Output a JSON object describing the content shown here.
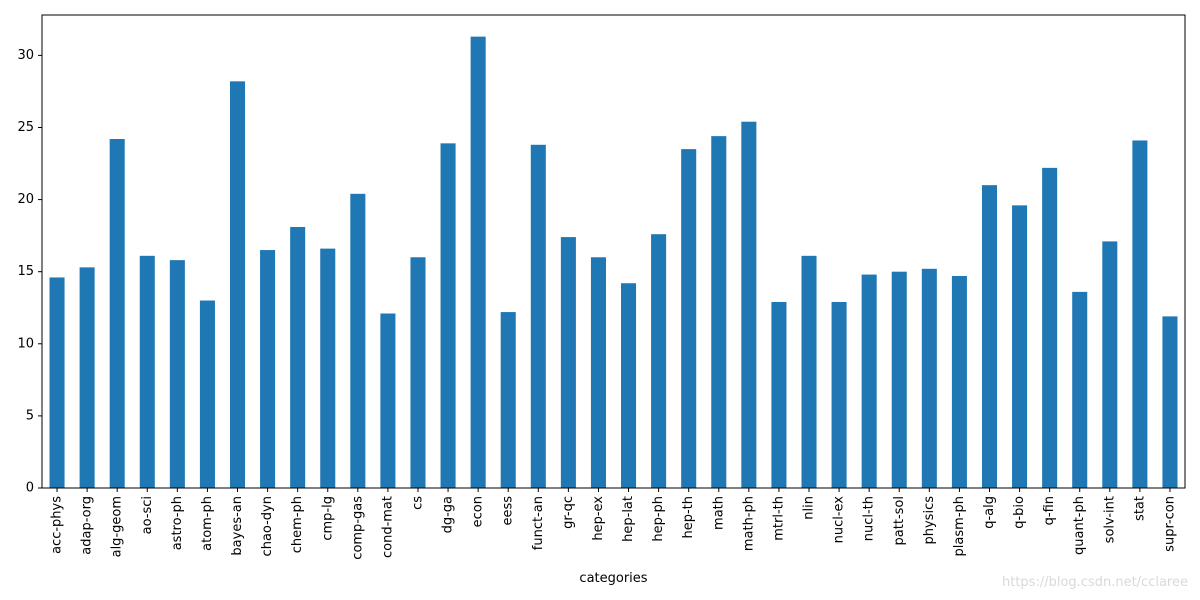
{
  "chart_data": {
    "type": "bar",
    "title": "",
    "xlabel": "categories",
    "ylabel": "",
    "ylim": [
      0,
      32.8
    ],
    "yticks": [
      0,
      5,
      10,
      15,
      20,
      25,
      30
    ],
    "grid": false,
    "legend": "none",
    "bar_color": "#1f77b4",
    "categories": [
      "acc-phys",
      "adap-org",
      "alg-geom",
      "ao-sci",
      "astro-ph",
      "atom-ph",
      "bayes-an",
      "chao-dyn",
      "chem-ph",
      "cmp-lg",
      "comp-gas",
      "cond-mat",
      "cs",
      "dg-ga",
      "econ",
      "eess",
      "funct-an",
      "gr-qc",
      "hep-ex",
      "hep-lat",
      "hep-ph",
      "hep-th",
      "math",
      "math-ph",
      "mtrl-th",
      "nlin",
      "nucl-ex",
      "nucl-th",
      "patt-sol",
      "physics",
      "plasm-ph",
      "q-alg",
      "q-bio",
      "q-fin",
      "quant-ph",
      "solv-int",
      "stat",
      "supr-con"
    ],
    "values": [
      14.6,
      15.3,
      24.2,
      16.1,
      15.8,
      13.0,
      28.2,
      16.5,
      18.1,
      16.6,
      20.4,
      12.1,
      16.0,
      23.9,
      31.3,
      12.2,
      23.8,
      17.4,
      16.0,
      14.2,
      17.6,
      23.5,
      24.4,
      25.4,
      12.9,
      16.1,
      12.9,
      14.8,
      15.0,
      15.2,
      14.7,
      21.0,
      19.6,
      22.2,
      13.6,
      17.1,
      24.1,
      11.9
    ]
  },
  "watermark": "https://blog.csdn.net/cclaree"
}
